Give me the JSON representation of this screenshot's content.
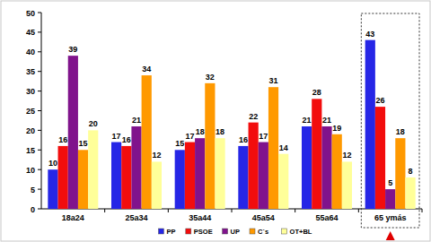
{
  "chart_data": {
    "type": "bar",
    "categories": [
      "18a24",
      "25a34",
      "35a44",
      "45a54",
      "55a64",
      "65 ymás"
    ],
    "series": [
      {
        "name": "PP",
        "color": "#2626e6",
        "values": [
          10,
          17,
          15,
          16,
          21,
          43
        ]
      },
      {
        "name": "PSOE",
        "color": "#f20d0d",
        "values": [
          16,
          16,
          17,
          22,
          28,
          26
        ]
      },
      {
        "name": "UP",
        "color": "#80138c",
        "values": [
          39,
          21,
          18,
          17,
          21,
          5
        ]
      },
      {
        "name": "C`s",
        "color": "#ff9900",
        "values": [
          15,
          34,
          32,
          31,
          19,
          18
        ]
      },
      {
        "name": "OT+BL",
        "color": "#ffff99",
        "values": [
          20,
          12,
          18,
          14,
          12,
          8
        ]
      }
    ],
    "ylim": [
      0,
      50
    ],
    "yticks": [
      0,
      5,
      10,
      15,
      20,
      25,
      30,
      35,
      40,
      45,
      50
    ],
    "grid": false,
    "data_labels": true,
    "legend": "bottom"
  }
}
